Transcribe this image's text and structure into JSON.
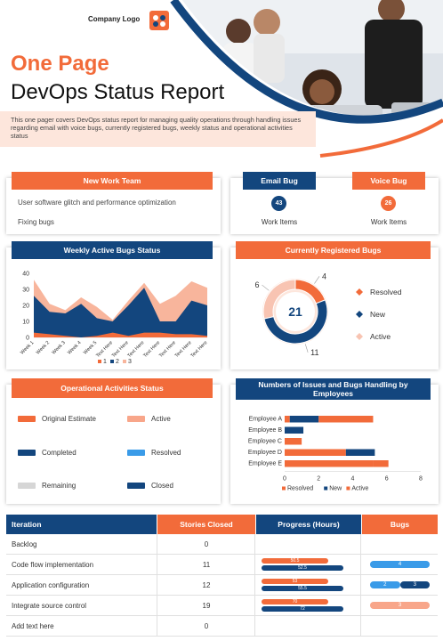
{
  "header": {
    "company_logo": "Company Logo",
    "title_line1": "One Page",
    "title_line2": "DevOps Status Report",
    "description": "This one pager covers DevOps status report for managing quality operations through handling issues regarding email with voice bugs, currently registered bugs, weekly status and operational activities status"
  },
  "new_work_team": {
    "title": "New Work Team",
    "items": [
      "User software glitch and performance optimization",
      "Fixing bugs"
    ]
  },
  "email_bug": {
    "title": "Email Bug",
    "value": "43",
    "caption": "Work Items"
  },
  "voice_bug": {
    "title": "Voice Bug",
    "value": "26",
    "caption": "Work Items"
  },
  "weekly_chart_title": "Weekly Active Bugs Status",
  "registered_title": "Currently Registered Bugs",
  "operational_title": "Operational Activities Status",
  "employees_title": "Numbers of Issues and Bugs Handling by Employees",
  "legend_ops": [
    {
      "label": "Original Estimate",
      "color": "#f26b3a"
    },
    {
      "label": "Active",
      "color": "#f8a68a"
    },
    {
      "label": "Completed",
      "color": "#13467e"
    },
    {
      "label": "Resolved",
      "color": "#3a9be8"
    },
    {
      "label": "Remaining",
      "color": "#d6d6d6"
    },
    {
      "label": "Closed",
      "color": "#13467e"
    }
  ],
  "chart_data": [
    {
      "type": "area",
      "title": "Weekly Active Bugs Status",
      "categories": [
        "Week 1",
        "Week 2",
        "Week 3",
        "Week 4",
        "Week 5",
        "Text Here",
        "Text Here",
        "Text Here",
        "Text Here",
        "Text Here",
        "Text Here",
        "Text Here"
      ],
      "ylim": [
        0,
        40
      ],
      "yticks": [
        0,
        10,
        20,
        30,
        40
      ],
      "series": [
        {
          "name": "1",
          "color": "#f26b3a",
          "values": [
            3,
            2,
            1,
            0,
            1,
            3,
            1,
            3,
            3,
            2,
            2,
            1
          ]
        },
        {
          "name": "2",
          "color": "#13467e",
          "values": [
            26,
            16,
            15,
            21,
            12,
            10,
            20,
            31,
            10,
            10,
            23,
            20
          ]
        },
        {
          "name": "3",
          "color": "#f8b59c",
          "values": [
            36,
            21,
            17,
            25,
            19,
            11,
            23,
            34,
            21,
            26,
            35,
            31
          ]
        }
      ]
    },
    {
      "type": "pie",
      "title": "Currently Registered Bugs",
      "center_label": "21",
      "series": [
        {
          "name": "Resolved",
          "value": 4,
          "color": "#f26b3a"
        },
        {
          "name": "New",
          "value": 11,
          "color": "#13467e"
        },
        {
          "name": "Active",
          "value": 6,
          "color": "#f8c4b2"
        }
      ]
    },
    {
      "type": "bar",
      "title": "Numbers of Issues and Bugs Handling by Employees",
      "categories": [
        "Employee A",
        "Employee B",
        "Employee C",
        "Employee D",
        "Employee E"
      ],
      "xlim": [
        0,
        8
      ],
      "xticks": [
        0,
        2,
        4,
        6,
        8
      ],
      "series": [
        {
          "name": "Resolved",
          "color": "#f26b3a",
          "values": [
            0.3,
            0,
            1,
            3.6,
            5.2
          ]
        },
        {
          "name": "New",
          "color": "#13467e",
          "values": [
            1.7,
            1.1,
            0,
            1.7,
            0
          ]
        },
        {
          "name": "Active",
          "color": "#f26b3a",
          "values": [
            3.2,
            0,
            0,
            0,
            0.9
          ]
        }
      ]
    }
  ],
  "table": {
    "headers": [
      "Iteration",
      "Stories Closed",
      "Progress (Hours)",
      "Bugs"
    ],
    "rows": [
      {
        "iteration": "Backlog",
        "closed": "0",
        "p1": null,
        "p2": null,
        "bugs": []
      },
      {
        "iteration": "Code flow implementation",
        "closed": "11",
        "p1": "50.5",
        "p2": "52.5",
        "bugs": [
          {
            "v": "4",
            "color": "#3a9be8",
            "frac": 1.0
          }
        ]
      },
      {
        "iteration": "Application configuration",
        "closed": "12",
        "p1": "53",
        "p2": "55.5",
        "bugs": [
          {
            "v": "2",
            "color": "#3a9be8",
            "frac": 0.5
          },
          {
            "v": "3",
            "color": "#13467e",
            "frac": 0.5
          }
        ]
      },
      {
        "iteration": "Integrate source control",
        "closed": "19",
        "p1": "70",
        "p2": "72",
        "bugs": [
          {
            "v": "3",
            "color": "#f8a68a",
            "frac": 1.0
          }
        ]
      },
      {
        "iteration": "Add text here",
        "closed": "0",
        "p1": null,
        "p2": null,
        "bugs": []
      }
    ]
  }
}
